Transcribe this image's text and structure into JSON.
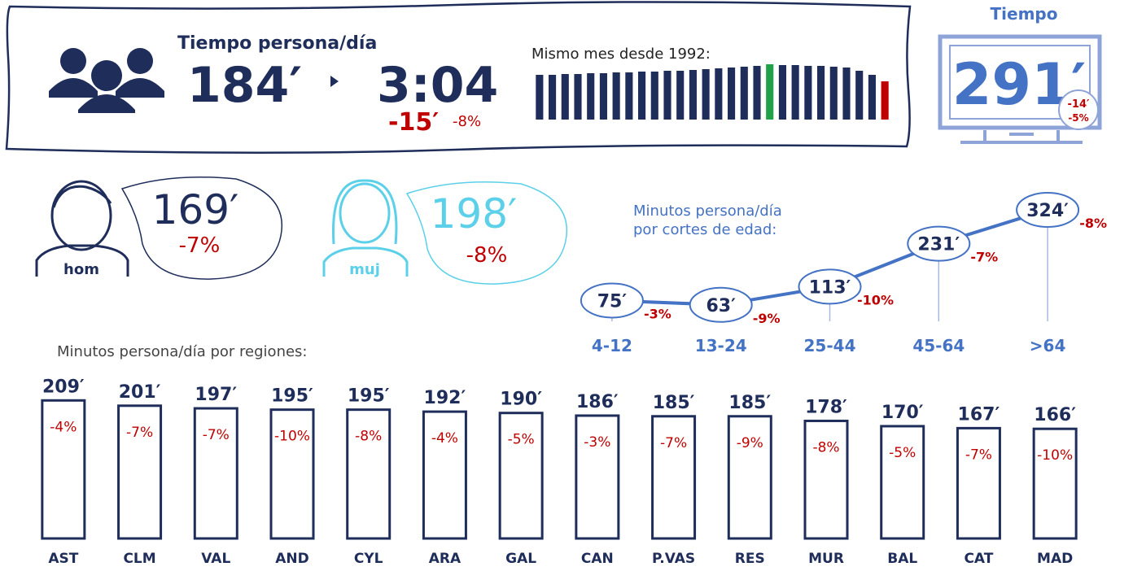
{
  "header": {
    "title": "Tiempo persona/día",
    "minutes": "184′",
    "hours": "3:04",
    "change_minutes": "-15′",
    "change_pct": "-8%"
  },
  "tv": {
    "title": "Tiempo",
    "value": "291′",
    "change_minutes": "-14′",
    "change_pct": "-5%"
  },
  "gender": [
    {
      "label": "hom",
      "value": "169′",
      "change": "-7%"
    },
    {
      "label": "muj",
      "value": "198′",
      "change": "-8%"
    }
  ],
  "chart_data": [
    {
      "type": "bar",
      "title": "Mismo mes desde 1992:",
      "values": [
        55,
        55,
        56,
        56,
        57,
        57,
        58,
        58,
        59,
        59,
        60,
        60,
        61,
        62,
        63,
        64,
        65,
        66,
        68,
        67,
        67,
        66,
        66,
        65,
        64,
        60,
        55,
        47
      ],
      "colors": [
        "#1f2d5a",
        "#1f2d5a",
        "#1f2d5a",
        "#1f2d5a",
        "#1f2d5a",
        "#1f2d5a",
        "#1f2d5a",
        "#1f2d5a",
        "#1f2d5a",
        "#1f2d5a",
        "#1f2d5a",
        "#1f2d5a",
        "#1f2d5a",
        "#1f2d5a",
        "#1f2d5a",
        "#1f2d5a",
        "#1f2d5a",
        "#1f2d5a",
        "#21a14a",
        "#1f2d5a",
        "#1f2d5a",
        "#1f2d5a",
        "#1f2d5a",
        "#1f2d5a",
        "#1f2d5a",
        "#1f2d5a",
        "#1f2d5a",
        "#c00000"
      ],
      "ylim": [
        0,
        70
      ]
    },
    {
      "type": "line",
      "title": [
        "Minutos persona/día",
        "por cortes de edad:"
      ],
      "categories": [
        "4-12",
        "13-24",
        "25-44",
        "45-64",
        ">64"
      ],
      "values": [
        75,
        63,
        113,
        231,
        324
      ],
      "value_labels": [
        "75′",
        "63′",
        "113′",
        "231′",
        "324′"
      ],
      "changes": [
        -3,
        -9,
        -10,
        -7,
        -8
      ],
      "change_labels": [
        "-3%",
        "-9%",
        "-10%",
        "-7%",
        "-8%"
      ],
      "color": "#4472c4",
      "ylim": [
        0,
        400
      ]
    },
    {
      "type": "bar",
      "title": "Minutos persona/día por regiones:",
      "categories": [
        "AST",
        "CLM",
        "VAL",
        "AND",
        "CYL",
        "ARA",
        "GAL",
        "CAN",
        "P.VAS",
        "RES",
        "MUR",
        "BAL",
        "CAT",
        "MAD"
      ],
      "values": [
        209,
        201,
        197,
        195,
        195,
        192,
        190,
        186,
        185,
        185,
        178,
        170,
        167,
        166
      ],
      "value_labels": [
        "209′",
        "201′",
        "197′",
        "195′",
        "195′",
        "192′",
        "190′",
        "186′",
        "185′",
        "185′",
        "178′",
        "170′",
        "167′",
        "166′"
      ],
      "changes": [
        -4,
        -7,
        -7,
        -10,
        -8,
        -4,
        -5,
        -3,
        -7,
        -9,
        -8,
        -5,
        -7,
        -10
      ],
      "change_labels": [
        "-4%",
        "-7%",
        "-7%",
        "-10%",
        "-8%",
        "-4%",
        "-5%",
        "-3%",
        "-7%",
        "-9%",
        "-8%",
        "-5%",
        "-7%",
        "-10%"
      ],
      "color": "#1f2d5a",
      "ylim": [
        0,
        250
      ]
    }
  ]
}
